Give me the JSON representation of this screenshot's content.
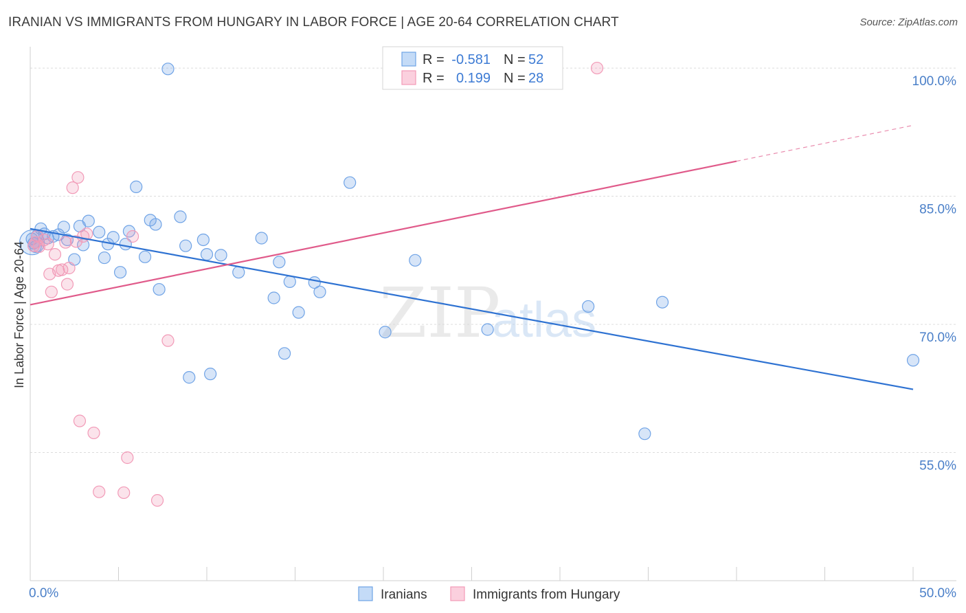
{
  "chart_data": {
    "type": "scatter",
    "title": "IRANIAN VS IMMIGRANTS FROM HUNGARY IN LABOR FORCE | AGE 20-64 CORRELATION CHART",
    "source": "Source: ZipAtlas.com",
    "xlabel": "",
    "ylabel": "In Labor Force | Age 20-64",
    "xlim": [
      0,
      50
    ],
    "ylim": [
      40,
      102.5
    ],
    "x_tick_labels": [
      "0.0%",
      "50.0%"
    ],
    "y_ticks": [
      55,
      70,
      85,
      100
    ],
    "y_tick_labels": [
      "55.0%",
      "70.0%",
      "85.0%",
      "100.0%"
    ],
    "grid": true,
    "legend_position": "bottom-center",
    "watermark": {
      "zip": "ZIP",
      "atlas": "atlas"
    },
    "stats_box": {
      "r_label": "R =",
      "n_label": "N =",
      "rows": [
        {
          "series": "Iranians",
          "r": "-0.581",
          "n": "52"
        },
        {
          "series": "Immigrants from Hungary",
          "r": "0.199",
          "n": "28"
        }
      ]
    },
    "series": [
      {
        "name": "Iranians",
        "color": "#6fa3e6",
        "line_color": "#2e72d2",
        "trend": {
          "x": [
            0,
            50
          ],
          "y": [
            81.2,
            62.4
          ],
          "dashed_to": null
        },
        "points": [
          [
            0.2,
            79.5
          ],
          [
            0.4,
            80.4
          ],
          [
            0.6,
            81.2
          ],
          [
            0.8,
            80.6
          ],
          [
            1.0,
            80.1
          ],
          [
            1.3,
            80.3
          ],
          [
            1.6,
            80.5
          ],
          [
            1.9,
            81.4
          ],
          [
            2.1,
            79.9
          ],
          [
            2.5,
            77.6
          ],
          [
            2.8,
            81.5
          ],
          [
            3.0,
            79.3
          ],
          [
            3.3,
            82.1
          ],
          [
            3.9,
            80.8
          ],
          [
            4.2,
            77.8
          ],
          [
            4.4,
            79.4
          ],
          [
            4.7,
            80.2
          ],
          [
            5.1,
            76.1
          ],
          [
            5.4,
            79.4
          ],
          [
            5.6,
            80.9
          ],
          [
            6.0,
            86.1
          ],
          [
            6.5,
            77.9
          ],
          [
            6.8,
            82.2
          ],
          [
            7.1,
            81.7
          ],
          [
            7.3,
            74.1
          ],
          [
            7.8,
            99.9
          ],
          [
            8.5,
            82.6
          ],
          [
            8.8,
            79.2
          ],
          [
            9.0,
            63.8
          ],
          [
            9.8,
            79.9
          ],
          [
            10.0,
            78.2
          ],
          [
            10.2,
            64.2
          ],
          [
            10.8,
            78.1
          ],
          [
            11.8,
            76.1
          ],
          [
            13.1,
            80.1
          ],
          [
            13.8,
            73.1
          ],
          [
            14.1,
            77.3
          ],
          [
            14.4,
            66.6
          ],
          [
            14.7,
            75.0
          ],
          [
            15.2,
            71.4
          ],
          [
            16.1,
            74.9
          ],
          [
            16.4,
            73.8
          ],
          [
            18.1,
            86.6
          ],
          [
            20.1,
            69.1
          ],
          [
            21.8,
            77.5
          ],
          [
            25.9,
            69.4
          ],
          [
            31.6,
            72.1
          ],
          [
            34.8,
            57.2
          ],
          [
            35.8,
            72.6
          ],
          [
            50.0,
            65.8
          ],
          [
            0.1,
            80.0
          ],
          [
            0.3,
            79.1
          ]
        ]
      },
      {
        "name": "Immigrants from Hungary",
        "color": "#f29ab7",
        "line_color": "#e05a8a",
        "trend": {
          "x": [
            0,
            40
          ],
          "y": [
            72.3,
            89.1
          ],
          "dashed_to": [
            50,
            93.3
          ]
        },
        "points": [
          [
            0.2,
            79.2
          ],
          [
            0.3,
            79.6
          ],
          [
            0.5,
            79.1
          ],
          [
            0.8,
            79.9
          ],
          [
            1.0,
            79.4
          ],
          [
            1.1,
            75.9
          ],
          [
            1.2,
            73.8
          ],
          [
            1.4,
            78.2
          ],
          [
            1.6,
            76.3
          ],
          [
            1.8,
            76.4
          ],
          [
            2.0,
            79.6
          ],
          [
            2.1,
            74.7
          ],
          [
            2.2,
            76.6
          ],
          [
            2.4,
            86.0
          ],
          [
            2.6,
            79.7
          ],
          [
            2.7,
            87.2
          ],
          [
            2.8,
            58.7
          ],
          [
            3.0,
            80.3
          ],
          [
            3.2,
            80.6
          ],
          [
            3.6,
            57.3
          ],
          [
            3.9,
            50.4
          ],
          [
            5.3,
            50.3
          ],
          [
            5.5,
            54.4
          ],
          [
            5.8,
            80.3
          ],
          [
            7.2,
            49.4
          ],
          [
            7.8,
            68.1
          ],
          [
            32.1,
            100.0
          ],
          [
            0.4,
            80.3
          ]
        ]
      }
    ]
  }
}
